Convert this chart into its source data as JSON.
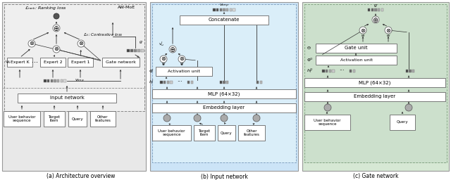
{
  "fig_width": 6.4,
  "fig_height": 2.56,
  "dpi": 100,
  "panel_a_bg": "#e8e8e8",
  "panel_b_bg": "#cce4f7",
  "panel_c_bg": "#d6e8d4",
  "caption_a": "(a) Architecture overview",
  "caption_b": "(b) Input network",
  "caption_c": "(c) Gate network",
  "vimp_colors": [
    "#444444",
    "#555555",
    "#777777",
    "#999999",
    "#aaaaaa",
    "#cccccc",
    "#dddddd"
  ],
  "gate_colors": [
    "#444444",
    "#666666",
    "#888888",
    "#aaaaaa",
    "#cccccc"
  ],
  "sq_colors4": [
    "#444444",
    "#777777",
    "#aaaaaa",
    "#cccccc"
  ],
  "sq_colors2": [
    "#666666",
    "#bbbbbb"
  ]
}
